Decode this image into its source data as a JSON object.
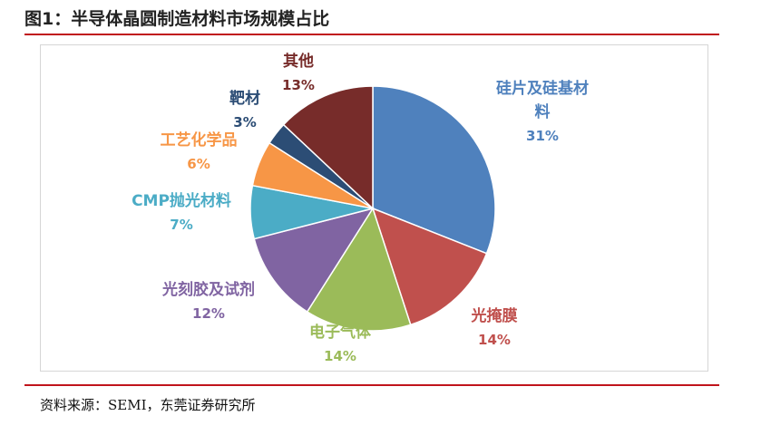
{
  "figure": {
    "title": "图1：半导体晶圆制造材料市场规模占比",
    "source": "资料来源：SEMI，东莞证券研究所"
  },
  "chart_data": {
    "type": "pie",
    "title": "",
    "unit": "%",
    "slices": [
      {
        "label_lines": [
          "硅片及硅基材",
          "料"
        ],
        "value": 31,
        "value_label": "31%",
        "color": "#4f81bd"
      },
      {
        "label_lines": [
          "光掩膜"
        ],
        "value": 14,
        "value_label": "14%",
        "color": "#c0504d"
      },
      {
        "label_lines": [
          "电子气体"
        ],
        "value": 14,
        "value_label": "14%",
        "color": "#9bbb59"
      },
      {
        "label_lines": [
          "光刻胶及试剂"
        ],
        "value": 12,
        "value_label": "12%",
        "color": "#8064a2"
      },
      {
        "label_lines": [
          "CMP抛光材料"
        ],
        "value": 7,
        "value_label": "7%",
        "color": "#4bacc6"
      },
      {
        "label_lines": [
          "工艺化学品"
        ],
        "value": 6,
        "value_label": "6%",
        "color": "#f79646"
      },
      {
        "label_lines": [
          "靶材"
        ],
        "value": 3,
        "value_label": "3%",
        "color": "#2c4d75"
      },
      {
        "label_lines": [
          "其他"
        ],
        "value": 13,
        "value_label": "13%",
        "color": "#772c2a"
      }
    ]
  }
}
